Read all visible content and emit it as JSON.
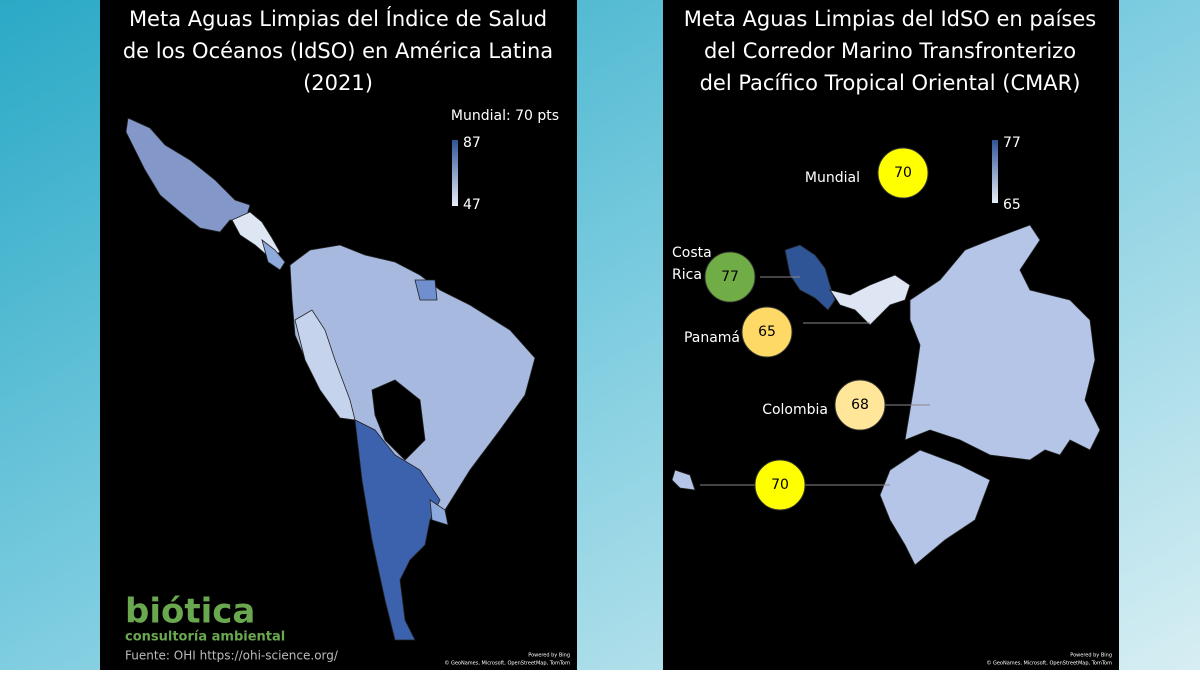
{
  "left_panel": {
    "title_lines": [
      "Meta Aguas Limpias del Índice de Salud",
      "de los Océanos (IdSO) en América Latina",
      "(2021)"
    ],
    "global_note": "Mundial: 70 pts",
    "legend_max": 87,
    "legend_min": 47,
    "logo_name": "biótica",
    "logo_tagline": "consultoría ambiental",
    "source": "Fuente: OHI https://ohi-science.org/",
    "powered_by": "Powered by Bing",
    "credits": "© GeoNames, Microsoft, OpenStreetMap, TomTom"
  },
  "right_panel": {
    "title_lines": [
      "Meta Aguas Limpias del IdSO en países",
      "del Corredor Marino Transfronterizo",
      "del Pacífico Tropical Oriental (CMAR)"
    ],
    "legend_max": 77,
    "legend_min": 65,
    "bubbles": [
      {
        "label": "Mundial",
        "value": 70,
        "color": "#ffff00"
      },
      {
        "label": "Costa Rica",
        "value": 77,
        "color": "#70ad47"
      },
      {
        "label": "Panamá",
        "value": 65,
        "color": "#ffd966"
      },
      {
        "label": "Colombia",
        "value": 68,
        "color": "#ffe699"
      },
      {
        "label": null,
        "value": 70,
        "color": "#ffff00"
      }
    ],
    "powered_by": "Powered by Bing",
    "credits": "© GeoNames, Microsoft, OpenStreetMap, TomTom"
  }
}
